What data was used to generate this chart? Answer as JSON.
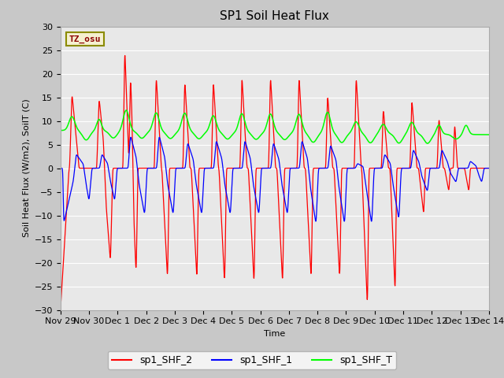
{
  "title": "SP1 Soil Heat Flux",
  "xlabel": "Time",
  "ylabel": "Soil Heat Flux (W/m2), SoilT (C)",
  "ylim": [
    -30,
    30
  ],
  "tick_labels": [
    "Nov 29",
    "Nov 30",
    "Dec 1",
    "Dec 2",
    "Dec 3",
    "Dec 4",
    "Dec 5",
    "Dec 6",
    "Dec 7",
    "Dec 8",
    "Dec 9",
    "Dec 10",
    "Dec 11",
    "Dec 12",
    "Dec 13",
    "Dec 14"
  ],
  "tick_positions": [
    0,
    1,
    2,
    3,
    4,
    5,
    6,
    7,
    8,
    9,
    10,
    11,
    12,
    13,
    14,
    15
  ],
  "legend_entries": [
    "sp1_SHF_2",
    "sp1_SHF_1",
    "sp1_SHF_T"
  ],
  "line_colors": [
    "red",
    "blue",
    "lime"
  ],
  "tz_label": "TZ_osu",
  "plot_bg_color": "#e8e8e8",
  "fig_bg_color": "#e0e0e0",
  "title_fontsize": 11,
  "axis_fontsize": 8,
  "tick_fontsize": 8
}
